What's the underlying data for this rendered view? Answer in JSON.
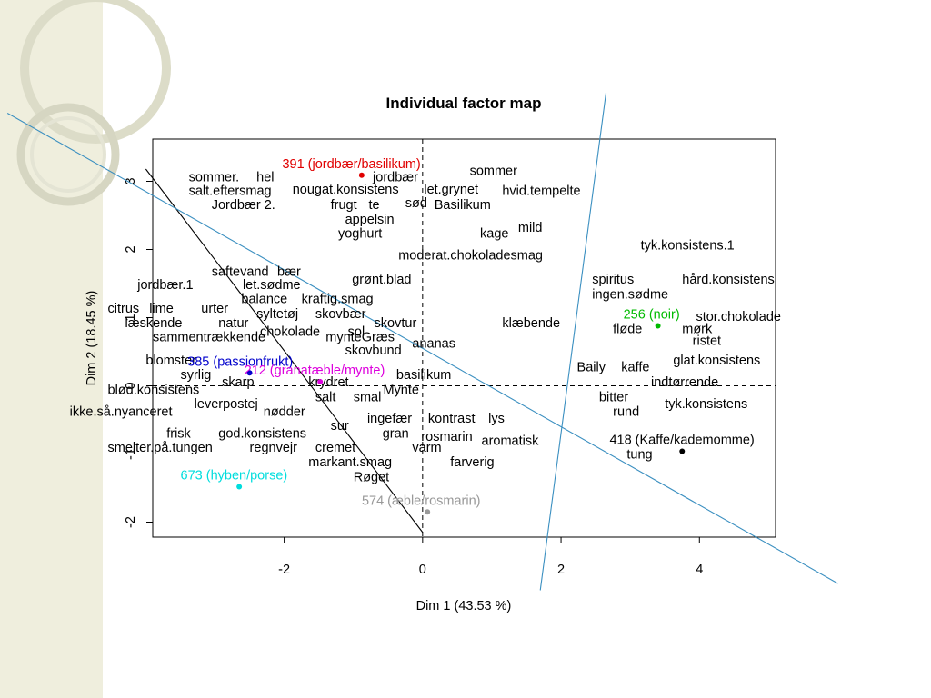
{
  "chart_data": {
    "type": "scatter",
    "title": "Individual factor map",
    "xlabel": "Dim 1 (43.53 %)",
    "ylabel": "Dim 2 (18.45 %)",
    "xlim": [
      -3.9,
      5.1
    ],
    "ylim": [
      -2.22,
      3.62
    ],
    "xticks": [
      -2,
      0,
      2,
      4
    ],
    "yticks": [
      -2,
      -1,
      0,
      1,
      2,
      3
    ],
    "reference_lines": {
      "x": 0,
      "y": 0,
      "style": "dashed"
    },
    "points": [
      {
        "label": "391 (jordbær/basilikum)",
        "x": -0.88,
        "y": 3.09,
        "color": "#e00000"
      },
      {
        "label": "256 (noir)",
        "x": 3.4,
        "y": 0.88,
        "color": "#00bb00"
      },
      {
        "label": "385 (passionfrukt)",
        "x": -2.5,
        "y": 0.19,
        "color": "#0000cc"
      },
      {
        "label": "212 (granatæble/mynte)",
        "x": -1.48,
        "y": 0.06,
        "color": "#dd00dd"
      },
      {
        "label": "418 (Kaffe/kademomme)",
        "x": 3.75,
        "y": -0.96,
        "color": "#000000"
      },
      {
        "label": "673 (hyben/porse)",
        "x": -2.65,
        "y": -1.48,
        "color": "#00dddd"
      },
      {
        "label": "574 (æble/rosmarin)",
        "x": 0.07,
        "y": -1.85,
        "color": "#999999"
      }
    ],
    "supplementary_labels": [
      {
        "label": "sommer",
        "x": 0.68,
        "y": 3.16
      },
      {
        "label": "sommer.",
        "x": -3.38,
        "y": 3.07
      },
      {
        "label": "hel",
        "x": -2.4,
        "y": 3.07
      },
      {
        "label": "jordbær",
        "x": -0.72,
        "y": 3.07
      },
      {
        "label": "salt.eftersmag",
        "x": -3.38,
        "y": 2.87
      },
      {
        "label": "nougat.konsistens",
        "x": -1.88,
        "y": 2.89
      },
      {
        "label": "let.grynet",
        "x": 0.02,
        "y": 2.89
      },
      {
        "label": "hvid.tempelte",
        "x": 1.15,
        "y": 2.87
      },
      {
        "label": "sød",
        "x": -0.25,
        "y": 2.69
      },
      {
        "label": "Jordbær 2.",
        "x": -3.05,
        "y": 2.66
      },
      {
        "label": "frugt",
        "x": -1.33,
        "y": 2.66
      },
      {
        "label": "te",
        "x": -0.78,
        "y": 2.66
      },
      {
        "label": "Basilikum",
        "x": 0.17,
        "y": 2.66
      },
      {
        "label": "appelsin",
        "x": -1.12,
        "y": 2.45
      },
      {
        "label": "mild",
        "x": 1.38,
        "y": 2.33
      },
      {
        "label": "yoghurt",
        "x": -1.22,
        "y": 2.24
      },
      {
        "label": "kage",
        "x": 0.83,
        "y": 2.24
      },
      {
        "label": "tyk.konsistens.1",
        "x": 3.15,
        "y": 2.07
      },
      {
        "label": "moderat.chokoladesmag",
        "x": -0.35,
        "y": 1.92
      },
      {
        "label": "saftevand",
        "x": -3.05,
        "y": 1.68
      },
      {
        "label": "bær",
        "x": -2.1,
        "y": 1.68
      },
      {
        "label": "grønt.blad",
        "x": -1.02,
        "y": 1.57
      },
      {
        "label": "spiritus",
        "x": 2.45,
        "y": 1.57
      },
      {
        "label": "hård.konsistens",
        "x": 3.75,
        "y": 1.57
      },
      {
        "label": "jordbær.1",
        "x": -4.12,
        "y": 1.49
      },
      {
        "label": "let.sødme",
        "x": -2.6,
        "y": 1.49
      },
      {
        "label": "ingen.sødme",
        "x": 2.45,
        "y": 1.35
      },
      {
        "label": "balance",
        "x": -2.62,
        "y": 1.28
      },
      {
        "label": "kraftig.smag",
        "x": -1.75,
        "y": 1.28
      },
      {
        "label": "citrus",
        "x": -4.55,
        "y": 1.14
      },
      {
        "label": "lime",
        "x": -3.95,
        "y": 1.14
      },
      {
        "label": "urter",
        "x": -3.2,
        "y": 1.14
      },
      {
        "label": "syltetøj",
        "x": -2.4,
        "y": 1.06
      },
      {
        "label": "skovbær",
        "x": -1.55,
        "y": 1.06
      },
      {
        "label": "stor.chokolade",
        "x": 3.95,
        "y": 1.02
      },
      {
        "label": "læskende",
        "x": -4.3,
        "y": 0.93
      },
      {
        "label": "natur",
        "x": -2.95,
        "y": 0.93
      },
      {
        "label": "skovtur",
        "x": -0.7,
        "y": 0.93
      },
      {
        "label": "klæbende",
        "x": 1.15,
        "y": 0.93
      },
      {
        "label": "fløde",
        "x": 2.75,
        "y": 0.84
      },
      {
        "label": "mørk",
        "x": 3.75,
        "y": 0.84
      },
      {
        "label": "chokolade",
        "x": -2.35,
        "y": 0.8
      },
      {
        "label": "sol",
        "x": -1.08,
        "y": 0.8
      },
      {
        "label": "sammentrækkende",
        "x": -3.9,
        "y": 0.72
      },
      {
        "label": "mynteGræs",
        "x": -1.4,
        "y": 0.72
      },
      {
        "label": "ristet",
        "x": 3.9,
        "y": 0.67
      },
      {
        "label": "ananas",
        "x": -0.15,
        "y": 0.63
      },
      {
        "label": "skovbund",
        "x": -1.12,
        "y": 0.53
      },
      {
        "label": "glat.konsistens",
        "x": 3.62,
        "y": 0.38
      },
      {
        "label": "blomster",
        "x": -4.0,
        "y": 0.38
      },
      {
        "label": "Baily",
        "x": 2.23,
        "y": 0.28
      },
      {
        "label": "kaffe",
        "x": 2.87,
        "y": 0.28
      },
      {
        "label": "syrlig",
        "x": -3.5,
        "y": 0.17
      },
      {
        "label": "basilikum",
        "x": -0.38,
        "y": 0.17
      },
      {
        "label": "skarp",
        "x": -2.9,
        "y": 0.06
      },
      {
        "label": "krydret",
        "x": -1.65,
        "y": 0.06
      },
      {
        "label": "indtørrende",
        "x": 3.3,
        "y": 0.06
      },
      {
        "label": "blød.konsistens",
        "x": -4.55,
        "y": -0.05
      },
      {
        "label": "Mynte",
        "x": -0.57,
        "y": -0.05
      },
      {
        "label": "salt",
        "x": -1.55,
        "y": -0.16
      },
      {
        "label": "smal",
        "x": -1.0,
        "y": -0.16
      },
      {
        "label": "bitter",
        "x": 2.55,
        "y": -0.16
      },
      {
        "label": "leverpostej",
        "x": -3.3,
        "y": -0.26
      },
      {
        "label": "tyk.konsistens",
        "x": 3.5,
        "y": -0.26
      },
      {
        "label": "ikke.så.nyanceret",
        "x": -5.1,
        "y": -0.37
      },
      {
        "label": "nødder",
        "x": -2.3,
        "y": -0.37
      },
      {
        "label": "rund",
        "x": 2.75,
        "y": -0.37
      },
      {
        "label": "ingefær",
        "x": -0.8,
        "y": -0.47
      },
      {
        "label": "kontrast",
        "x": 0.08,
        "y": -0.47
      },
      {
        "label": "lys",
        "x": 0.95,
        "y": -0.47
      },
      {
        "label": "sur",
        "x": -1.33,
        "y": -0.58
      },
      {
        "label": "frisk",
        "x": -3.7,
        "y": -0.69
      },
      {
        "label": "god.konsistens",
        "x": -2.95,
        "y": -0.69
      },
      {
        "label": "gran",
        "x": -0.58,
        "y": -0.69
      },
      {
        "label": "rosmarin",
        "x": -0.02,
        "y": -0.74
      },
      {
        "label": "aromatisk",
        "x": 0.85,
        "y": -0.8
      },
      {
        "label": "418 (Kaffe/kademomme)",
        "x": 2.5,
        "y": -0.8,
        "hidden_duplicate": true
      },
      {
        "label": "smelter.på.tungen",
        "x": -4.55,
        "y": -0.9
      },
      {
        "label": "regnvejr",
        "x": -2.5,
        "y": -0.9
      },
      {
        "label": "cremet",
        "x": -1.55,
        "y": -0.9
      },
      {
        "label": "varm",
        "x": -0.15,
        "y": -0.9
      },
      {
        "label": "tung",
        "x": 2.95,
        "y": -1.0
      },
      {
        "label": "markant.smag",
        "x": -1.65,
        "y": -1.11
      },
      {
        "label": "farverig",
        "x": 0.4,
        "y": -1.11
      },
      {
        "label": "Røget",
        "x": -1.0,
        "y": -1.33
      }
    ],
    "overlay_lines": [
      {
        "name": "diagonal-black",
        "from": [
          -4.0,
          3.18
        ],
        "to": [
          0.0,
          -2.15
        ],
        "color": "#000000"
      },
      {
        "name": "diagonal-blue-1",
        "from": [
          -6.0,
          4.0
        ],
        "to": [
          6.0,
          -2.9
        ],
        "color": "#3a8fc0"
      },
      {
        "name": "diagonal-blue-2",
        "from": [
          2.65,
          4.3
        ],
        "to": [
          1.7,
          -3.0
        ],
        "color": "#3a8fc0"
      }
    ],
    "grid": false,
    "legend": "none"
  }
}
